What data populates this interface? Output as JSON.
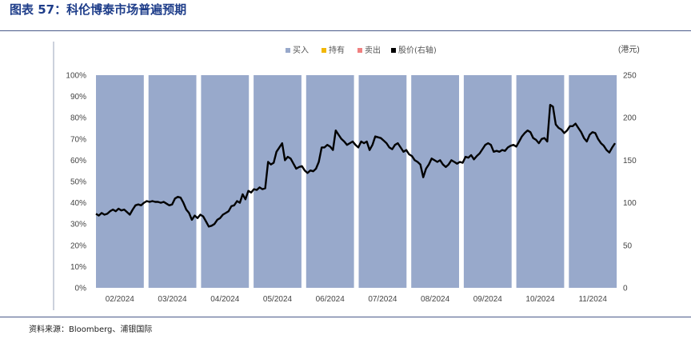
{
  "figure_title": "图表 57：科伦博泰市场普遍预期",
  "source": "资料来源：Bloomberg、浦银国际",
  "chart_data": {
    "type": "bar+line",
    "unit_right": "(港元)",
    "legend": [
      {
        "label": "买入",
        "color": "#98a9cb"
      },
      {
        "label": "持有",
        "color": "#f2b705"
      },
      {
        "label": "卖出",
        "color": "#f08080"
      },
      {
        "label": "股价(右轴)",
        "color": "#000000"
      }
    ],
    "bar_color": "#98a9cb",
    "left_ticks": [
      "0%",
      "10%",
      "20%",
      "30%",
      "40%",
      "50%",
      "60%",
      "70%",
      "80%",
      "90%",
      "100%"
    ],
    "right_ticks": [
      "0",
      "50",
      "100",
      "150",
      "200",
      "250"
    ],
    "left_range": [
      0,
      100
    ],
    "right_range": [
      0,
      250
    ],
    "categories": [
      "02/2024",
      "03/2024",
      "04/2024",
      "05/2024",
      "06/2024",
      "07/2024",
      "08/2024",
      "09/2024",
      "10/2024",
      "11/2024"
    ],
    "series": [
      {
        "name": "买入",
        "values": [
          100,
          100,
          100,
          100,
          100,
          100,
          100,
          100,
          100,
          100
        ]
      },
      {
        "name": "持有",
        "values": [
          0,
          0,
          0,
          0,
          0,
          0,
          0,
          0,
          0,
          0
        ]
      },
      {
        "name": "卖出",
        "values": [
          0,
          0,
          0,
          0,
          0,
          0,
          0,
          0,
          0,
          0
        ]
      }
    ],
    "price_series": {
      "name": "股价(右轴)",
      "values": [
        87,
        85,
        88,
        86,
        87,
        90,
        92,
        90,
        93,
        91,
        92,
        89,
        86,
        92,
        97,
        98,
        97,
        100,
        102,
        101,
        102,
        101,
        101,
        100,
        101,
        99,
        97,
        98,
        105,
        107,
        106,
        100,
        92,
        88,
        80,
        85,
        82,
        86,
        84,
        78,
        72,
        73,
        75,
        80,
        82,
        86,
        88,
        90,
        96,
        97,
        102,
        100,
        110,
        104,
        114,
        112,
        116,
        115,
        118,
        116,
        117,
        148,
        145,
        147,
        160,
        165,
        170,
        150,
        154,
        152,
        146,
        140,
        142,
        143,
        138,
        135,
        138,
        137,
        140,
        148,
        165,
        165,
        168,
        166,
        162,
        185,
        180,
        175,
        172,
        168,
        170,
        172,
        168,
        165,
        172,
        170,
        172,
        162,
        168,
        178,
        177,
        176,
        173,
        170,
        165,
        163,
        168,
        170,
        165,
        160,
        162,
        157,
        155,
        150,
        148,
        145,
        130,
        140,
        145,
        152,
        150,
        148,
        150,
        145,
        142,
        145,
        150,
        148,
        146,
        148,
        147,
        154,
        153,
        156,
        151,
        155,
        158,
        163,
        168,
        170,
        168,
        160,
        161,
        160,
        162,
        161,
        165,
        167,
        168,
        166,
        172,
        178,
        182,
        185,
        183,
        176,
        174,
        170,
        175,
        176,
        172,
        215,
        213,
        192,
        188,
        186,
        182,
        185,
        190,
        190,
        193,
        188,
        183,
        176,
        172,
        180,
        183,
        182,
        175,
        170,
        167,
        162,
        159,
        165,
        170
      ]
    }
  }
}
